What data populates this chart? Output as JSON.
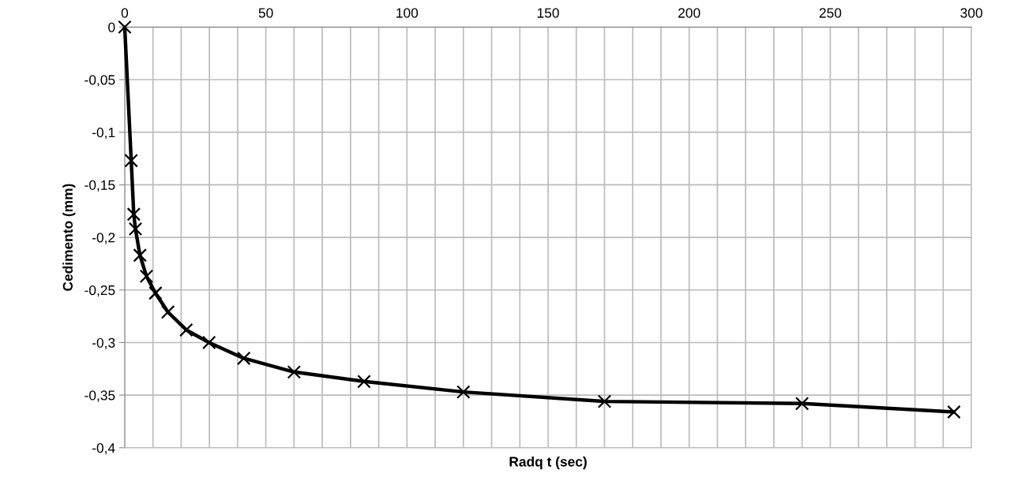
{
  "chart_data": {
    "type": "line",
    "xlabel": "Radq t (sec)",
    "ylabel": "Cedimento (mm)",
    "x": [
      0,
      2.3,
      3.2,
      3.8,
      5.4,
      7.7,
      10.9,
      15.3,
      21.8,
      29.9,
      42.2,
      60,
      84.8,
      120,
      170,
      240,
      293.8
    ],
    "series": [
      {
        "color": "#000000",
        "values": [
          0,
          -0.127,
          -0.178,
          -0.192,
          -0.217,
          -0.237,
          -0.253,
          -0.271,
          -0.288,
          -0.3,
          -0.315,
          -0.328,
          -0.337,
          -0.347,
          -0.356,
          -0.358,
          -0.366
        ]
      }
    ],
    "xlim": [
      0,
      300
    ],
    "ylim": [
      -0.4,
      0
    ],
    "xticks": [
      0,
      {
        "value": 10,
        "label": null
      },
      {
        "value": 20,
        "label": null
      },
      {
        "value": 30,
        "label": null
      },
      {
        "value": 40,
        "label": null
      },
      50,
      {
        "value": 60,
        "label": null
      },
      {
        "value": 70,
        "label": null
      },
      {
        "value": 80,
        "label": null
      },
      {
        "value": 90,
        "label": null
      },
      100,
      {
        "value": 110,
        "label": null
      },
      {
        "value": 120,
        "label": null
      },
      {
        "value": 130,
        "label": null
      },
      {
        "value": 140,
        "label": null
      },
      150,
      {
        "value": 160,
        "label": null
      },
      {
        "value": 170,
        "label": null
      },
      {
        "value": 180,
        "label": null
      },
      {
        "value": 190,
        "label": null
      },
      200,
      {
        "value": 210,
        "label": null
      },
      {
        "value": 220,
        "label": null
      },
      {
        "value": 230,
        "label": null
      },
      {
        "value": 240,
        "label": null
      },
      250,
      {
        "value": 260,
        "label": null
      },
      {
        "value": 270,
        "label": null
      },
      {
        "value": 280,
        "label": null
      },
      {
        "value": 290,
        "label": null
      },
      300
    ],
    "yticks": [
      {
        "value": 0,
        "label": "0"
      },
      {
        "value": -0.05,
        "label": "-0,05"
      },
      {
        "value": -0.1,
        "label": "-0,1"
      },
      {
        "value": -0.15,
        "label": "-0,15"
      },
      {
        "value": -0.2,
        "label": "-0,2"
      },
      {
        "value": -0.25,
        "label": "-0,25"
      },
      {
        "value": -0.3,
        "label": "-0,3"
      },
      {
        "value": -0.35,
        "label": "-0,35"
      },
      {
        "value": -0.4,
        "label": "-0,4"
      }
    ],
    "grid": true,
    "marker": "cross",
    "line_style": "solid",
    "legend": false
  }
}
